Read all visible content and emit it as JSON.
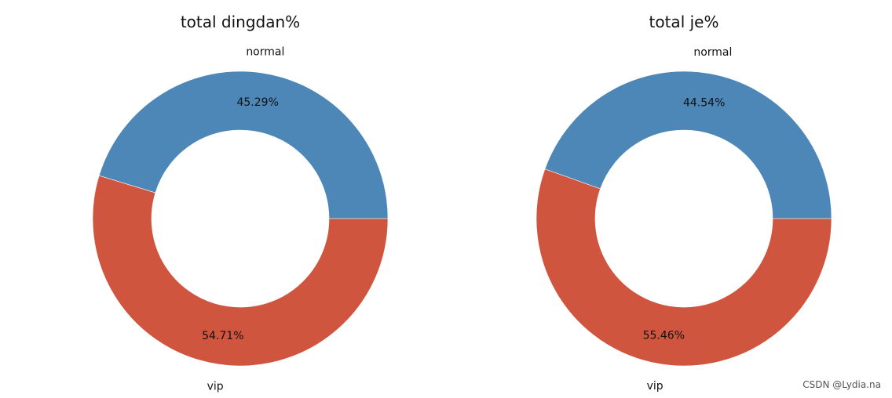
{
  "chart_data": [
    {
      "type": "pie",
      "style": "donut",
      "title": "total dingdan%",
      "categories": [
        "normal",
        "vip"
      ],
      "values": [
        45.29,
        54.71
      ],
      "value_labels": [
        "45.29%",
        "54.71%"
      ],
      "colors": [
        "#4d87b8",
        "#d0553f"
      ],
      "legend": "none"
    },
    {
      "type": "pie",
      "style": "donut",
      "title": "total je%",
      "categories": [
        "normal",
        "vip"
      ],
      "values": [
        44.54,
        55.46
      ],
      "value_labels": [
        "44.54%",
        "55.46%"
      ],
      "colors": [
        "#4d87b8",
        "#d0553f"
      ],
      "legend": "none"
    }
  ],
  "watermark": "CSDN @Lydia.na"
}
